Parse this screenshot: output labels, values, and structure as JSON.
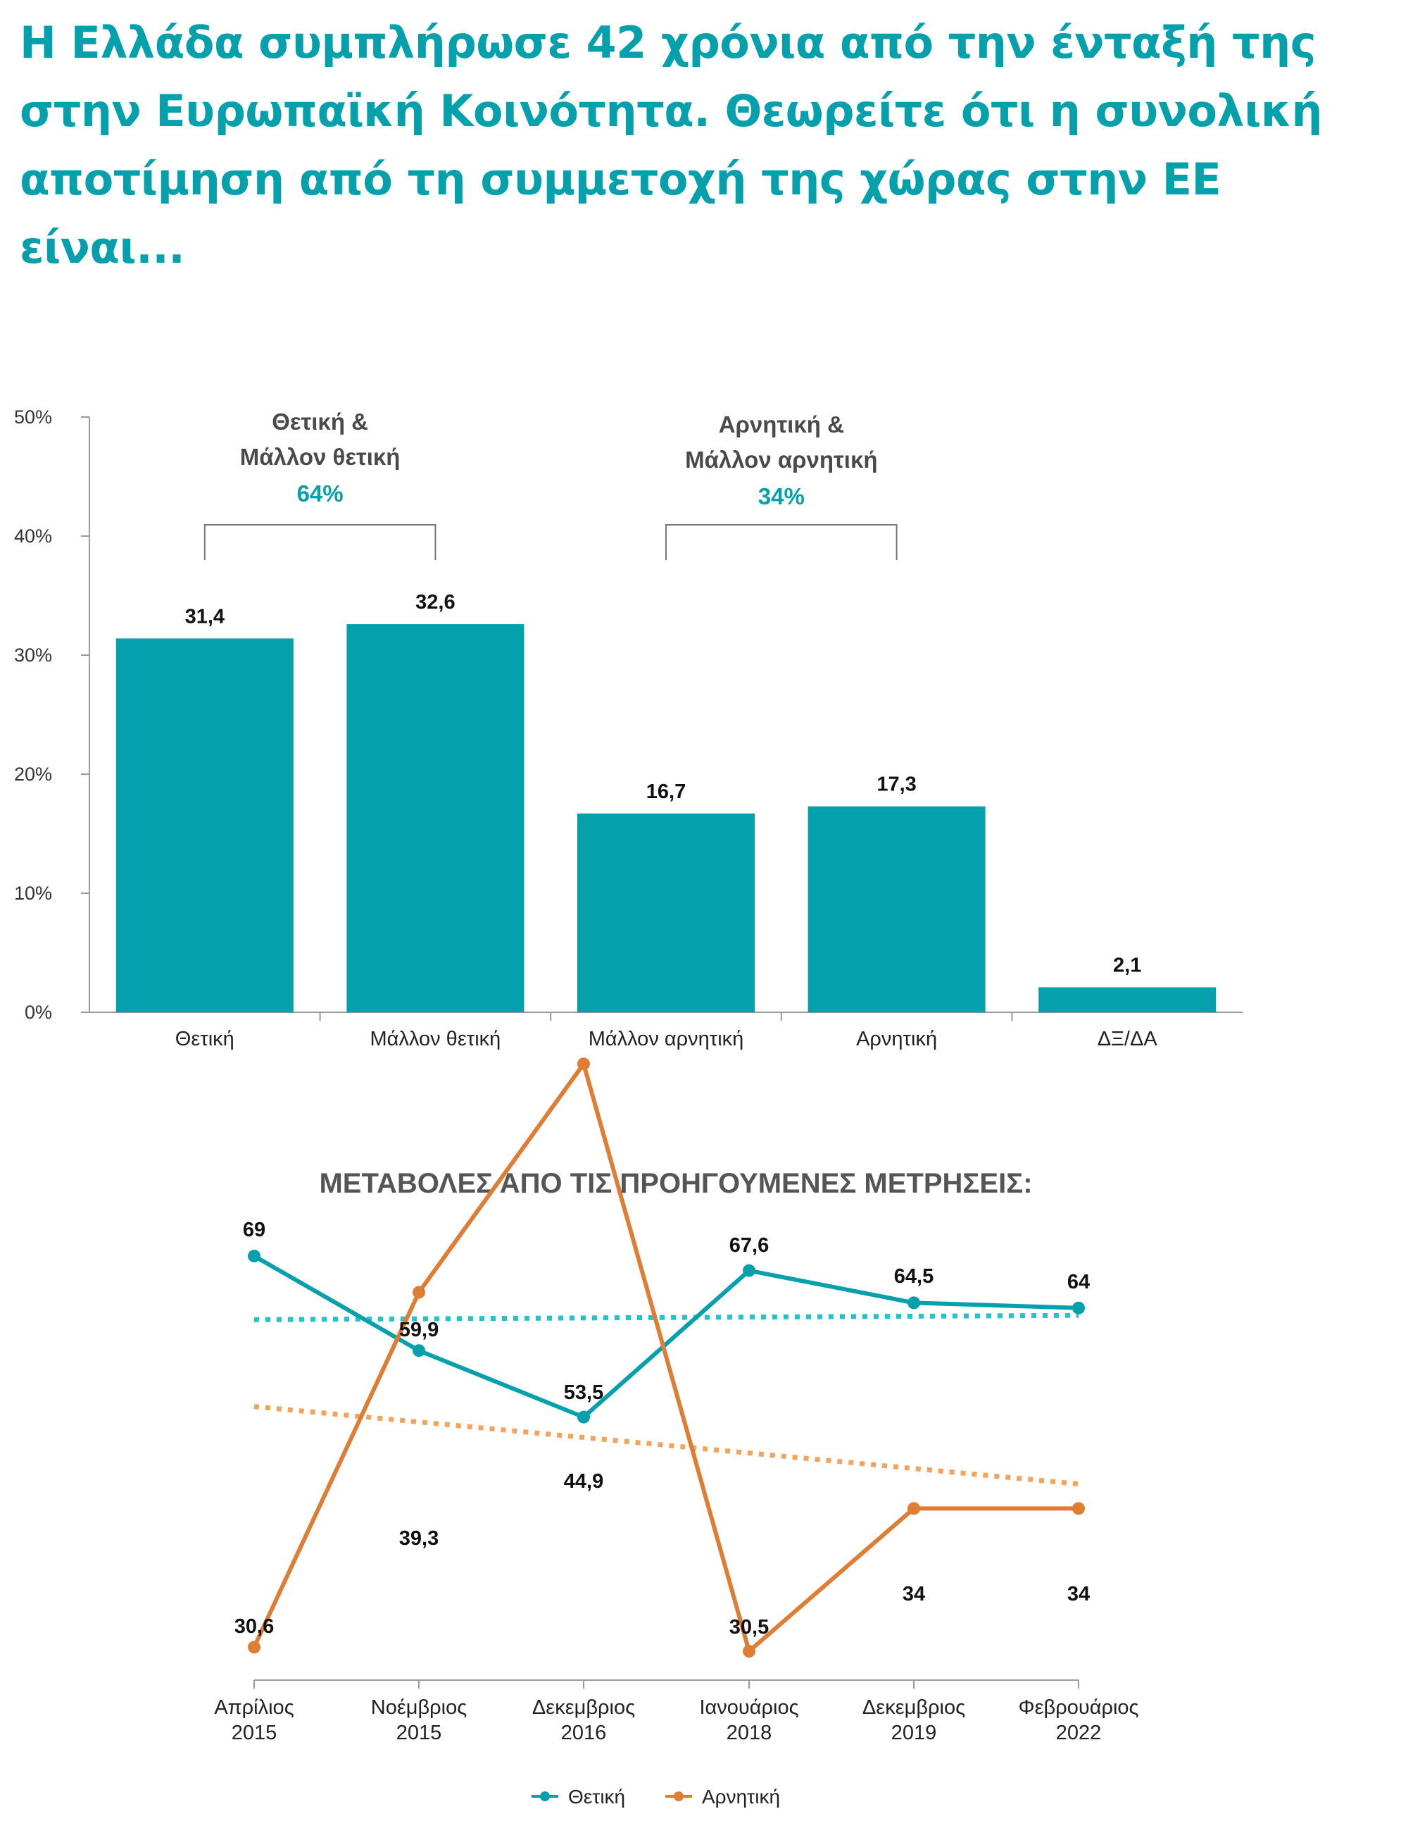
{
  "title": "Η Ελλάδα συμπλήρωσε 42 χρόνια από την ένταξή της στην Ευρωπαϊκή Κοινότητα. Θεωρείτε ότι η συνολική αποτίμηση από τη συμμετοχή της χώρας στην ΕΕ είναι...",
  "colors": {
    "teal": "#04a0ac",
    "orange": "#e07d34",
    "orange_trend": "#f4a35a",
    "teal_trend": "#1cc6cc"
  },
  "chart_data": [
    {
      "type": "bar",
      "categories": [
        "Θετική",
        "Μάλλον θετική",
        "Μάλλον αρνητική",
        "Αρνητική",
        "ΔΞ/ΔΑ"
      ],
      "values": [
        31.4,
        32.6,
        16.7,
        17.3,
        2.1
      ],
      "value_labels": [
        "31,4",
        "32,6",
        "16,7",
        "17,3",
        "2,1"
      ],
      "ylim": [
        0,
        50
      ],
      "yticks": [
        "0%",
        "10%",
        "20%",
        "30%",
        "40%",
        "50%"
      ],
      "brackets": [
        {
          "line1": "Θετική &",
          "line2": "Μάλλον θετική",
          "total": "64%"
        },
        {
          "line1": "Αρνητική &",
          "line2": "Μάλλον αρνητική",
          "total": "34%"
        }
      ]
    },
    {
      "type": "line",
      "title": "ΜΕΤΑΒΟΛΕΣ ΑΠΟ ΤΙΣ ΠΡΟΗΓΟΥΜΕΝΕΣ ΜΕΤΡΗΣΕΙΣ:",
      "x": [
        {
          "month": "Απρίλιος",
          "year": "2015"
        },
        {
          "month": "Νοέμβριος",
          "year": "2015"
        },
        {
          "month": "Δεκεμβριος",
          "year": "2016"
        },
        {
          "month": "Ιανουάριος",
          "year": "2018"
        },
        {
          "month": "Δεκεμβριος",
          "year": "2019"
        },
        {
          "month": "Φεβρουάριος",
          "year": "2022"
        }
      ],
      "series": [
        {
          "name": "Θετική",
          "values": [
            69,
            59.9,
            53.5,
            67.6,
            64.5,
            64
          ],
          "labels": [
            "69",
            "59,9",
            "53,5",
            "67,6",
            "64,5",
            "64"
          ],
          "trendline": true
        },
        {
          "name": "Αρνητική",
          "values": [
            30.6,
            39.3,
            44.9,
            30.5,
            34,
            34
          ],
          "labels": [
            "30,6",
            "39,3",
            "44,9",
            "30,5",
            "34",
            "34"
          ],
          "trendline": true
        }
      ]
    }
  ]
}
